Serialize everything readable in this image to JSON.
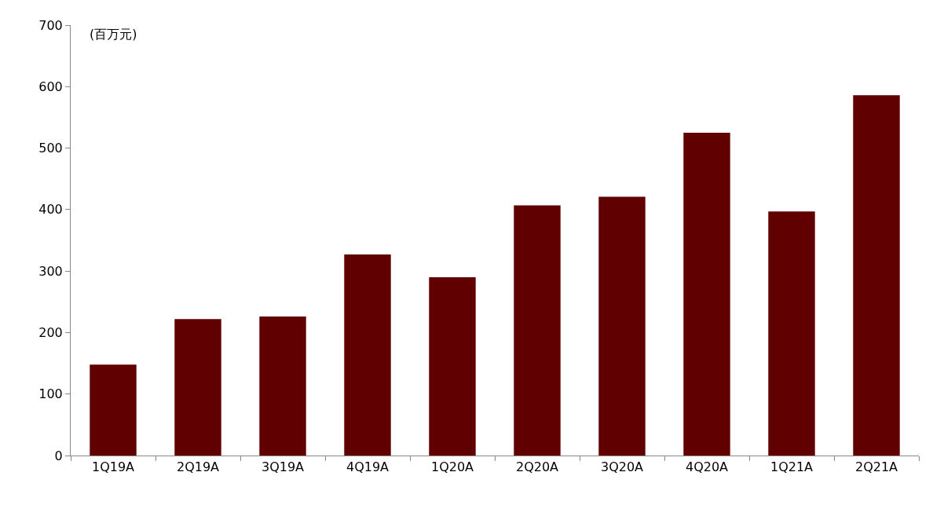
{
  "chart_data": {
    "type": "bar",
    "ylabel": "(百万元)",
    "categories": [
      "1Q19A",
      "2Q19A",
      "3Q19A",
      "4Q19A",
      "1Q20A",
      "2Q20A",
      "3Q20A",
      "4Q20A",
      "1Q21A",
      "2Q21A"
    ],
    "values": [
      148,
      222,
      226,
      327,
      290,
      407,
      421,
      525,
      397,
      586
    ],
    "color": "#600000",
    "ylim": [
      0,
      700
    ],
    "yticks": [
      0,
      100,
      200,
      300,
      400,
      500,
      600,
      700
    ],
    "grid": false
  }
}
